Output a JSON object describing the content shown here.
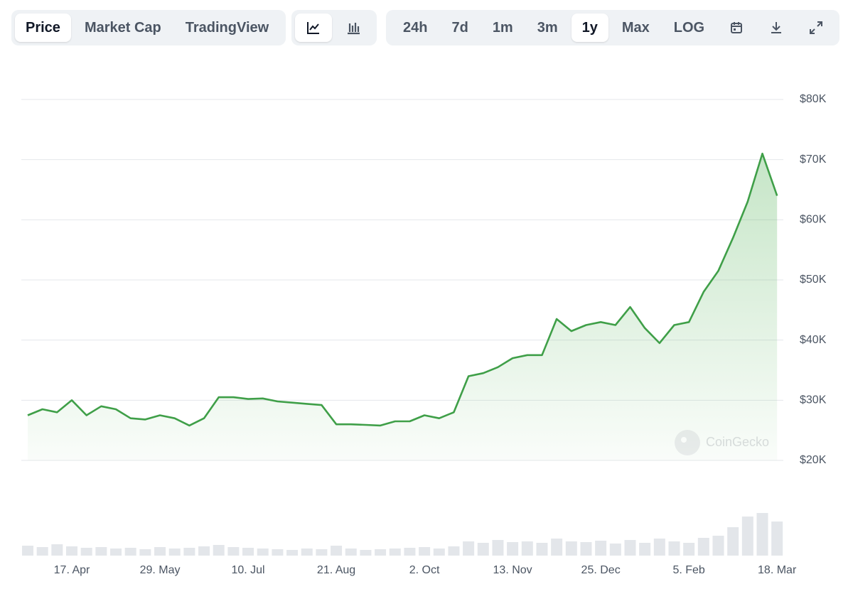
{
  "toolbar": {
    "view_tabs": [
      "Price",
      "Market Cap",
      "TradingView"
    ],
    "active_view_index": 0,
    "ranges": [
      "24h",
      "7d",
      "1m",
      "3m",
      "1y",
      "Max",
      "LOG"
    ],
    "active_range_index": 4
  },
  "chart_data": {
    "type": "line",
    "watermark": "CoinGecko",
    "color": "#3f9f48",
    "categories": [
      null,
      null,
      null,
      "17. Apr",
      null,
      null,
      null,
      null,
      null,
      "29. May",
      null,
      null,
      null,
      null,
      null,
      "10. Jul",
      null,
      null,
      null,
      null,
      null,
      "21. Aug",
      null,
      null,
      null,
      null,
      null,
      "2. Oct",
      null,
      null,
      null,
      null,
      null,
      "13. Nov",
      null,
      null,
      null,
      null,
      null,
      "25. Dec",
      null,
      null,
      null,
      null,
      null,
      "5. Feb",
      null,
      null,
      null,
      null,
      null,
      "18. Mar"
    ],
    "values": [
      27500,
      28500,
      28000,
      30000,
      27500,
      29000,
      28500,
      27000,
      26800,
      27500,
      27000,
      25800,
      27000,
      30500,
      30500,
      30200,
      30300,
      29800,
      29600,
      29400,
      29200,
      26000,
      26000,
      25900,
      25800,
      26500,
      26500,
      27500,
      27000,
      28000,
      34000,
      34500,
      35500,
      37000,
      37500,
      37500,
      43500,
      41500,
      42500,
      43000,
      42500,
      45500,
      42000,
      39500,
      42500,
      43000,
      48000,
      51500,
      57000,
      63000,
      71000,
      64000
    ],
    "volume": [
      14,
      12,
      16,
      13,
      11,
      12,
      10,
      11,
      9,
      12,
      10,
      11,
      13,
      15,
      12,
      11,
      10,
      9,
      8,
      10,
      9,
      14,
      10,
      8,
      9,
      10,
      11,
      12,
      10,
      13,
      20,
      18,
      22,
      19,
      20,
      18,
      24,
      20,
      19,
      21,
      17,
      22,
      18,
      24,
      20,
      18,
      25,
      28,
      40,
      55,
      60,
      48
    ],
    "ylim": [
      20000,
      80000
    ],
    "yticks": [
      {
        "value": 20000,
        "label": "$20K"
      },
      {
        "value": 30000,
        "label": "$30K"
      },
      {
        "value": 40000,
        "label": "$40K"
      },
      {
        "value": 50000,
        "label": "$50K"
      },
      {
        "value": 60000,
        "label": "$60K"
      },
      {
        "value": 70000,
        "label": "$70K"
      },
      {
        "value": 80000,
        "label": "$80K"
      }
    ],
    "grid": true
  }
}
